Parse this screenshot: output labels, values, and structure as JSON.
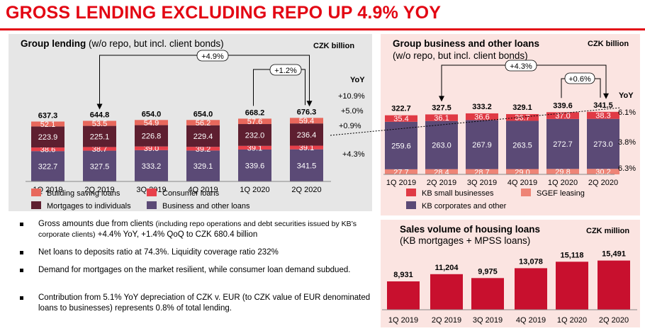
{
  "page": {
    "title": "GROSS LENDING EXCLUDING REPO UP 4.9% YOY"
  },
  "colors": {
    "brand_red": "#e30613",
    "building": "#e8685c",
    "consumer": "#e8404a",
    "mortgages": "#5e1f30",
    "business": "#5b4a76",
    "kb_small": "#e03a45",
    "sgef": "#ee8476",
    "kb_corp": "#5b4a76",
    "housing": "#c8102e"
  },
  "chart_data": [
    {
      "type": "bar",
      "title_bold": "Group lending",
      "title_rest": " (w/o repo, but incl. client bonds)",
      "unit": "CZK billion",
      "categories": [
        "1Q 2019",
        "2Q 2019",
        "3Q 2019",
        "4Q 2019",
        "1Q 2020",
        "2Q 2020"
      ],
      "totals": [
        "637.3",
        "644.8",
        "654.0",
        "654.0",
        "668.2",
        "676.3"
      ],
      "stacked": true,
      "series": [
        {
          "name": "Business and other loans",
          "values": [
            322.7,
            327.5,
            333.2,
            329.1,
            339.6,
            341.5
          ],
          "yoy": "+4.3%"
        },
        {
          "name": "Consumer loans",
          "values": [
            38.6,
            38.7,
            39.0,
            39.2,
            39.1,
            39.1
          ],
          "yoy": "+0.9%"
        },
        {
          "name": "Mortgages to individuals",
          "values": [
            223.9,
            225.1,
            226.8,
            229.4,
            232.0,
            236.4
          ],
          "yoy": "+5.0%"
        },
        {
          "name": "Building saving loans",
          "values": [
            52.1,
            53.5,
            54.9,
            56.2,
            57.6,
            59.4
          ],
          "yoy": "+10.9%"
        }
      ],
      "yoy_label": "YoY",
      "annotations": [
        "+4.9%",
        "+1.2%"
      ]
    },
    {
      "type": "bar",
      "title_line1": "Group business and other loans",
      "title_line2": "(w/o repo, but incl. client bonds)",
      "unit": "CZK billion",
      "categories": [
        "1Q 2019",
        "2Q 2019",
        "3Q 2019",
        "4Q 2019",
        "1Q 2020",
        "2Q 2020"
      ],
      "totals": [
        "322.7",
        "327.5",
        "333.2",
        "329.1",
        "339.6",
        "341.5"
      ],
      "stacked": true,
      "series": [
        {
          "name": "SGEF leasing",
          "values": [
            27.7,
            28.4,
            28.7,
            29.0,
            29.8,
            30.2
          ],
          "yoy": "6.3%"
        },
        {
          "name": "KB corporates and other",
          "values": [
            259.6,
            263.0,
            267.9,
            263.5,
            272.7,
            273.0
          ],
          "yoy": "3.8%"
        },
        {
          "name": "KB small businesses",
          "values": [
            35.4,
            36.1,
            36.6,
            36.7,
            37.0,
            38.3
          ],
          "yoy": "6.1%"
        }
      ],
      "yoy_label": "YoY",
      "annotations": [
        "+4.3%",
        "+0.6%"
      ]
    },
    {
      "type": "bar",
      "title_line1": "Sales volume of housing loans",
      "title_line2": "(KB mortgages + MPSS loans)",
      "unit": "CZK million",
      "categories": [
        "1Q 2019",
        "2Q 2019",
        "3Q 2019",
        "4Q 2019",
        "1Q 2020",
        "2Q 2020"
      ],
      "values": [
        8931,
        11204,
        9975,
        13078,
        15118,
        15491
      ],
      "labels": [
        "8,931",
        "11,204",
        "9,975",
        "13,078",
        "15,118",
        "15,491"
      ]
    }
  ],
  "bullets": [
    {
      "main": "Gross amounts due from clients ",
      "small": "(including repo operations and debt securities issued by KB’s corporate clients)",
      "tail": " +4.4% YoY, +1.4% QoQ to CZK 680.4 billion"
    },
    {
      "main": "Net loans to deposits ratio at 74.3%. Liquidity coverage ratio 232%"
    },
    {
      "main": "Demand for mortgages on the market resilient, while consumer loan demand subdued."
    },
    {
      "main": "Contribution from 5.1% YoY depreciation of CZK v. EUR (to CZK value of EUR denominated loans to businesses) represents 0.8% of total lending."
    }
  ]
}
